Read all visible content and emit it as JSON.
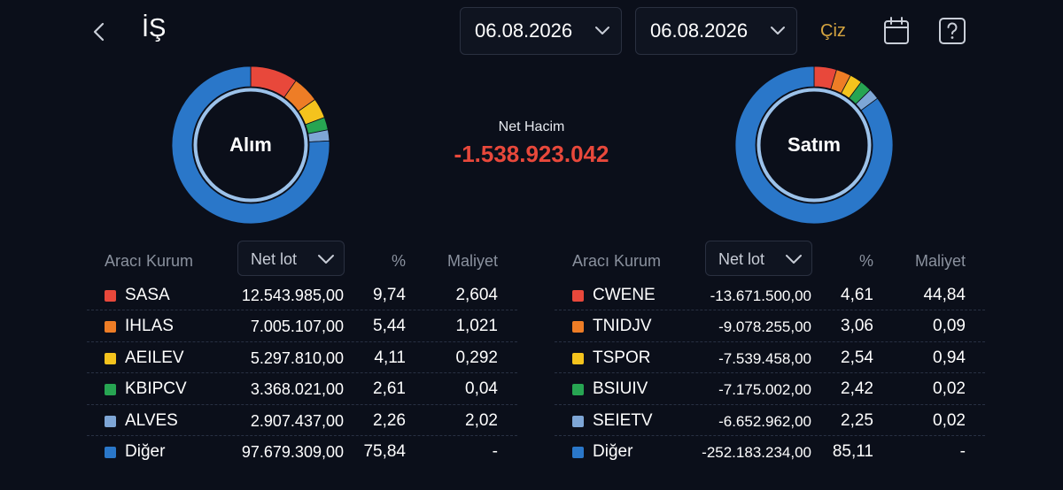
{
  "header": {
    "title": "İŞ",
    "back_icon": "chevron-left-icon",
    "date_start": "06.08.2026",
    "date_end": "06.08.2026",
    "draw_label": "Çiz",
    "calendar_icon": "calendar-icon",
    "help_icon": "help-icon"
  },
  "summary": {
    "alim_label": "Alım",
    "satim_label": "Satım",
    "net_label": "Net Hacim",
    "net_value": "-1.538.923.042"
  },
  "colors": {
    "red": "#e8483b",
    "orange": "#ee7d26",
    "yellow": "#f4c31d",
    "green": "#27a552",
    "lightblue": "#7ea6d6",
    "blue": "#2a77c9",
    "accent_gold": "#d6a540"
  },
  "buy_table": {
    "col_kurum": "Aracı Kurum",
    "col_select": "Net lot",
    "col_pct": "%",
    "col_cost": "Maliyet",
    "rows": [
      {
        "name": "SASA",
        "lot": "12.543.985,00",
        "pct": "9,74",
        "cost": "2,604",
        "share": 9.74,
        "color": "#e8483b"
      },
      {
        "name": "IHLAS",
        "lot": "7.005.107,00",
        "pct": "5,44",
        "cost": "1,021",
        "share": 5.44,
        "color": "#ee7d26"
      },
      {
        "name": "AEILEV",
        "lot": "5.297.810,00",
        "pct": "4,11",
        "cost": "0,292",
        "share": 4.11,
        "color": "#f4c31d"
      },
      {
        "name": "KBIPCV",
        "lot": "3.368.021,00",
        "pct": "2,61",
        "cost": "0,04",
        "share": 2.61,
        "color": "#27a552"
      },
      {
        "name": "ALVES",
        "lot": "2.907.437,00",
        "pct": "2,26",
        "cost": "2,02",
        "share": 2.26,
        "color": "#7ea6d6"
      },
      {
        "name": "Diğer",
        "lot": "97.679.309,00",
        "pct": "75,84",
        "cost": "-",
        "share": 75.84,
        "color": "#2a77c9"
      }
    ]
  },
  "sell_table": {
    "col_kurum": "Aracı Kurum",
    "col_select": "Net lot",
    "col_pct": "%",
    "col_cost": "Maliyet",
    "rows": [
      {
        "name": "CWENE",
        "lot": "-13.671.500,00",
        "pct": "4,61",
        "cost": "44,84",
        "share": 4.61,
        "color": "#e8483b"
      },
      {
        "name": "TNIDJV",
        "lot": "-9.078.255,00",
        "pct": "3,06",
        "cost": "0,09",
        "share": 3.06,
        "color": "#ee7d26"
      },
      {
        "name": "TSPOR",
        "lot": "-7.539.458,00",
        "pct": "2,54",
        "cost": "0,94",
        "share": 2.54,
        "color": "#f4c31d"
      },
      {
        "name": "BSIUIV",
        "lot": "-7.175.002,00",
        "pct": "2,42",
        "cost": "0,02",
        "share": 2.42,
        "color": "#27a552"
      },
      {
        "name": "SEIETV",
        "lot": "-6.652.962,00",
        "pct": "2,25",
        "cost": "0,02",
        "share": 2.25,
        "color": "#7ea6d6"
      },
      {
        "name": "Diğer",
        "lot": "-252.183.234,00",
        "pct": "85,11",
        "cost": "-",
        "share": 85.11,
        "color": "#2a77c9"
      }
    ]
  }
}
